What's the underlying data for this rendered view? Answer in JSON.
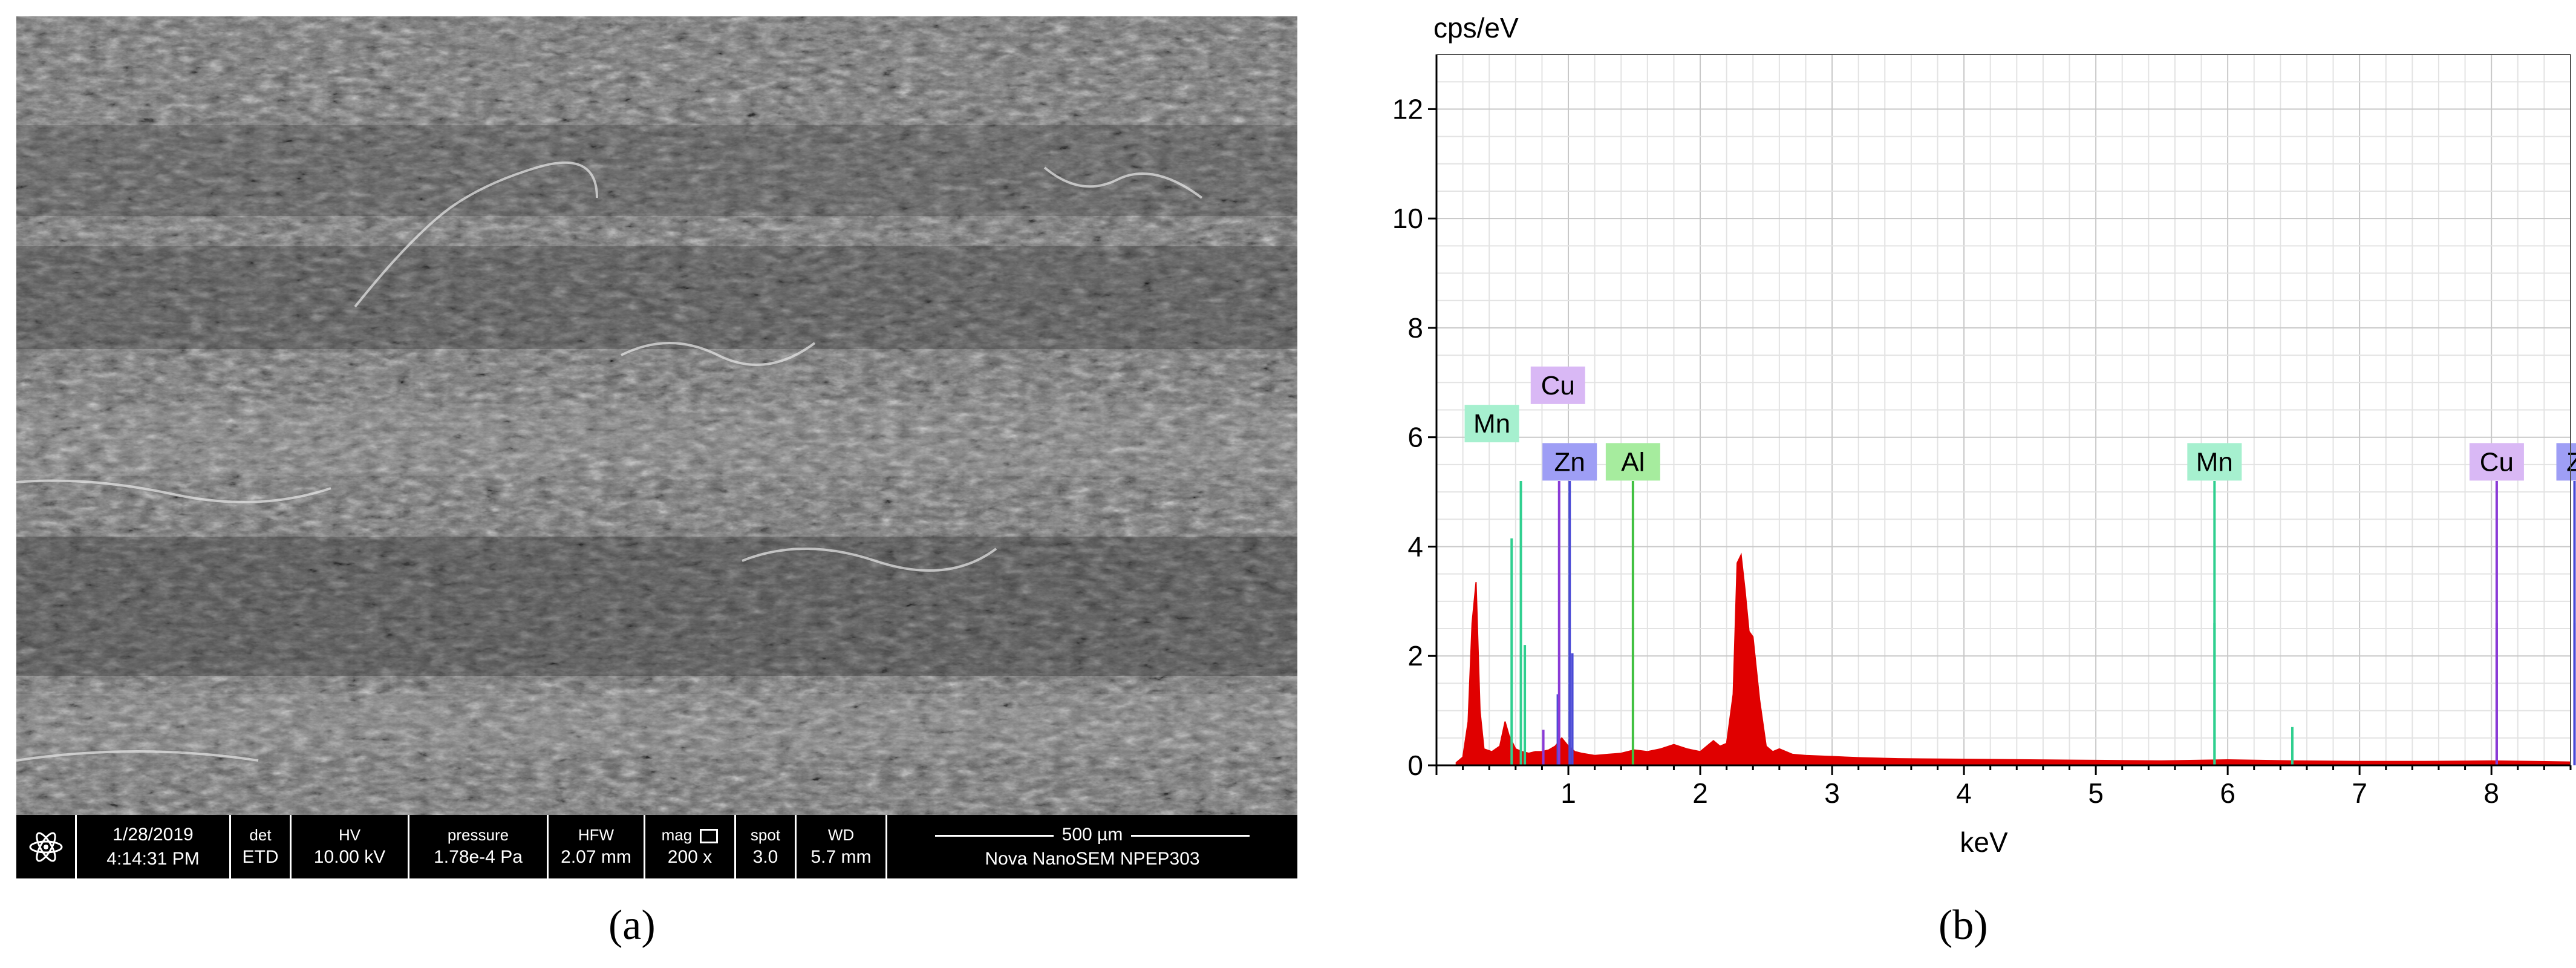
{
  "panel_a": {
    "caption": "(a)",
    "databar": {
      "date": "1/28/2019",
      "time": "4:14:31 PM",
      "det_label": "det",
      "det_value": "ETD",
      "hv_label": "HV",
      "hv_value": "10.00 kV",
      "pressure_label": "pressure",
      "pressure_value": "1.78e-4 Pa",
      "hfw_label": "HFW",
      "hfw_value": "2.07 mm",
      "mag_label": "mag",
      "mag_value": "200 x",
      "spot_label": "spot",
      "spot_value": "3.0",
      "wd_label": "WD",
      "wd_value": "5.7 mm",
      "scale_label": "500 µm",
      "instrument": "Nova NanoSEM  NPEP303"
    }
  },
  "panel_b": {
    "caption": "(b)"
  },
  "chart_data": {
    "type": "area",
    "title": "",
    "xlabel": "keV",
    "ylabel": "cps/eV",
    "xlim": [
      0,
      8.6
    ],
    "ylim": [
      0,
      13
    ],
    "grid": true,
    "x_ticks": [
      1,
      2,
      3,
      4,
      5,
      6,
      7,
      8
    ],
    "y_ticks": [
      0,
      2,
      4,
      6,
      8,
      10,
      12
    ],
    "series": [
      {
        "color": "#e00000",
        "x": [
          0.15,
          0.2,
          0.24,
          0.27,
          0.3,
          0.33,
          0.36,
          0.42,
          0.48,
          0.52,
          0.55,
          0.6,
          0.65,
          0.7,
          0.75,
          0.8,
          0.85,
          0.9,
          0.95,
          1.0,
          1.05,
          1.1,
          1.2,
          1.3,
          1.4,
          1.5,
          1.6,
          1.7,
          1.8,
          1.9,
          2.0,
          2.1,
          2.15,
          2.2,
          2.25,
          2.28,
          2.31,
          2.34,
          2.37,
          2.4,
          2.45,
          2.5,
          2.55,
          2.6,
          2.7,
          2.8,
          3.0,
          3.2,
          3.5,
          4.0,
          4.5,
          5.0,
          5.5,
          6.0,
          6.5,
          7.0,
          7.5,
          8.0,
          8.6
        ],
        "y": [
          0.05,
          0.15,
          0.8,
          2.6,
          3.35,
          1.0,
          0.3,
          0.25,
          0.35,
          0.8,
          0.55,
          0.3,
          0.25,
          0.22,
          0.25,
          0.25,
          0.28,
          0.35,
          0.5,
          0.35,
          0.25,
          0.22,
          0.18,
          0.2,
          0.22,
          0.28,
          0.25,
          0.3,
          0.38,
          0.3,
          0.25,
          0.45,
          0.35,
          0.4,
          1.3,
          3.7,
          3.85,
          3.2,
          2.45,
          2.35,
          1.2,
          0.35,
          0.25,
          0.3,
          0.2,
          0.18,
          0.16,
          0.14,
          0.12,
          0.11,
          0.1,
          0.09,
          0.08,
          0.1,
          0.08,
          0.07,
          0.07,
          0.08,
          0.06
        ]
      }
    ],
    "element_markers": [
      {
        "element": "Cu",
        "energy": 0.93,
        "height": 5.2,
        "color": "#8a3ad6",
        "label_bg": "#d9b8f5"
      },
      {
        "element": "Mn",
        "energy": 0.64,
        "height": 5.2,
        "color": "#2fcf8f",
        "label_bg": "#a6f0cf"
      },
      {
        "element": "Zn",
        "energy": 1.01,
        "height": 5.2,
        "color": "#4a4ad6",
        "label_bg": "#9e9ef5"
      },
      {
        "element": "Al",
        "energy": 1.49,
        "height": 5.2,
        "color": "#40c040",
        "label_bg": "#a6ec9e"
      },
      {
        "element": "Mn",
        "energy": 5.9,
        "height": 5.2,
        "color": "#2fcf8f",
        "label_bg": "#a6f0cf"
      },
      {
        "element": "Cu",
        "energy": 8.04,
        "height": 5.2,
        "color": "#8a3ad6",
        "label_bg": "#d9b8f5"
      },
      {
        "element": "Z",
        "energy": 8.63,
        "height": 5.2,
        "color": "#4a4ad6",
        "label_bg": "#9e9ef5"
      }
    ],
    "minor_lines": [
      {
        "energy": 0.57,
        "height": 4.15,
        "color": "#2fcf8f"
      },
      {
        "energy": 0.67,
        "height": 2.2,
        "color": "#2fcf8f"
      },
      {
        "energy": 0.81,
        "height": 0.65,
        "color": "#8a3ad6"
      },
      {
        "energy": 0.92,
        "height": 1.3,
        "color": "#4a4ad6"
      },
      {
        "energy": 1.03,
        "height": 2.05,
        "color": "#4a4ad6"
      },
      {
        "energy": 5.9,
        "height": 2.6,
        "color": "#2fcf8f"
      },
      {
        "energy": 6.49,
        "height": 0.7,
        "color": "#2fcf8f"
      },
      {
        "energy": 8.04,
        "height": 2.6,
        "color": "#8a3ad6"
      },
      {
        "energy": 8.63,
        "height": 2.6,
        "color": "#4a4ad6"
      }
    ]
  }
}
